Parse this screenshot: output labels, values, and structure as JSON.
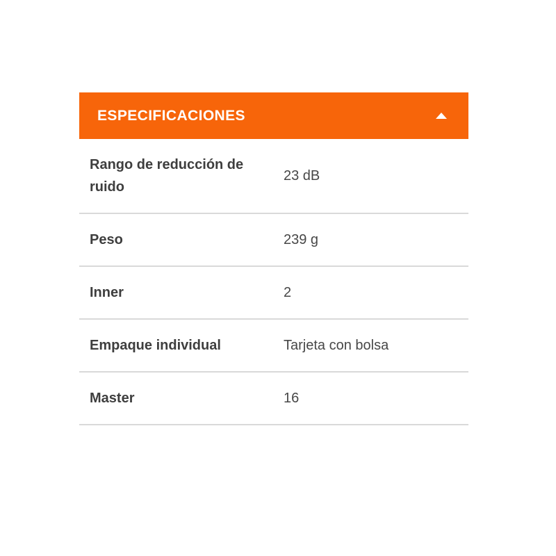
{
  "accordion": {
    "title": "ESPECIFICACIONES",
    "state": "expanded",
    "collapse_icon": "chevron-up-icon"
  },
  "specs": {
    "rows": [
      {
        "label": "Rango de reducción de ruido",
        "value": "23 dB"
      },
      {
        "label": "Peso",
        "value": "239 g"
      },
      {
        "label": "Inner",
        "value": "2"
      },
      {
        "label": "Empaque individual",
        "value": "Tarjeta con bolsa"
      },
      {
        "label": "Master",
        "value": "16"
      }
    ]
  },
  "colors": {
    "accent": "#F7650A",
    "header_text": "#FFFFFF",
    "label_text": "#3E3E3E",
    "value_text": "#474747",
    "divider": "#D9D9D9",
    "page_bg": "#FFFFFF"
  }
}
